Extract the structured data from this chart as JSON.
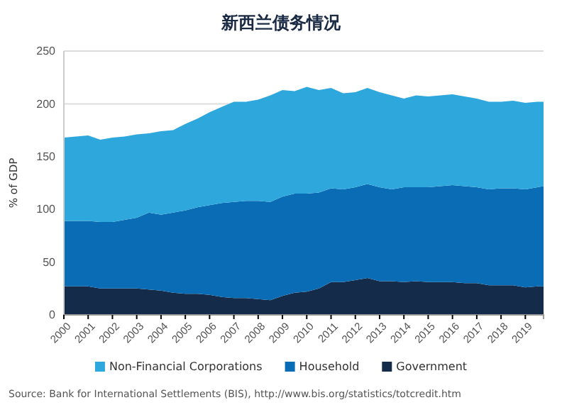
{
  "chart_data": {
    "type": "area",
    "stacked": true,
    "title": "新西兰债务情况",
    "ylabel": "% of GDP",
    "x": [
      2000,
      2000.5,
      2001,
      2001.5,
      2002,
      2002.5,
      2003,
      2003.5,
      2004,
      2004.5,
      2005,
      2005.5,
      2006,
      2006.5,
      2007,
      2007.5,
      2008,
      2008.5,
      2009,
      2009.5,
      2010,
      2010.5,
      2011,
      2011.5,
      2012,
      2012.5,
      2013,
      2013.5,
      2014,
      2014.5,
      2015,
      2015.5,
      2016,
      2016.5,
      2017,
      2017.5,
      2018,
      2018.5,
      2019,
      2019.5,
      2019.75
    ],
    "series": [
      {
        "name": "Government",
        "color": "#142b4a",
        "values": [
          27,
          27,
          27,
          25,
          25,
          25,
          25,
          24,
          23,
          21,
          20,
          20,
          19,
          17,
          16,
          16,
          15,
          14,
          18,
          21,
          22,
          25,
          31,
          31,
          33,
          35,
          32,
          32,
          31,
          32,
          31,
          31,
          31,
          30,
          30,
          28,
          28,
          28,
          26,
          27,
          27
        ]
      },
      {
        "name": "Household",
        "color": "#0a6cb4",
        "values": [
          62,
          62,
          62,
          63,
          63,
          65,
          67,
          73,
          72,
          76,
          79,
          82,
          85,
          89,
          91,
          92,
          93,
          93,
          94,
          94,
          93,
          91,
          89,
          88,
          88,
          89,
          89,
          87,
          90,
          89,
          90,
          91,
          92,
          92,
          91,
          91,
          92,
          92,
          93,
          94,
          95
        ]
      },
      {
        "name": "Non-Financial Corporations",
        "color": "#2ea8dc",
        "values": [
          79,
          80,
          81,
          78,
          80,
          79,
          79,
          75,
          79,
          78,
          82,
          84,
          88,
          91,
          95,
          94,
          96,
          101,
          101,
          97,
          101,
          97,
          95,
          91,
          90,
          91,
          90,
          89,
          84,
          87,
          86,
          86,
          86,
          85,
          84,
          83,
          82,
          83,
          82,
          81,
          80
        ]
      }
    ],
    "xlim": [
      2000,
      2019.75
    ],
    "xticks": [
      2000,
      2001,
      2002,
      2003,
      2004,
      2005,
      2006,
      2007,
      2008,
      2009,
      2010,
      2011,
      2012,
      2013,
      2014,
      2015,
      2016,
      2017,
      2018,
      2019
    ],
    "ylim": [
      0,
      250
    ],
    "yticks": [
      0,
      50,
      100,
      150,
      200,
      250
    ],
    "grid": "y",
    "legend": "bottom",
    "annotations": [
      "Source: Bank for International Settlements (BIS), http://www.bis.org/statistics/totcredit.htm"
    ]
  }
}
